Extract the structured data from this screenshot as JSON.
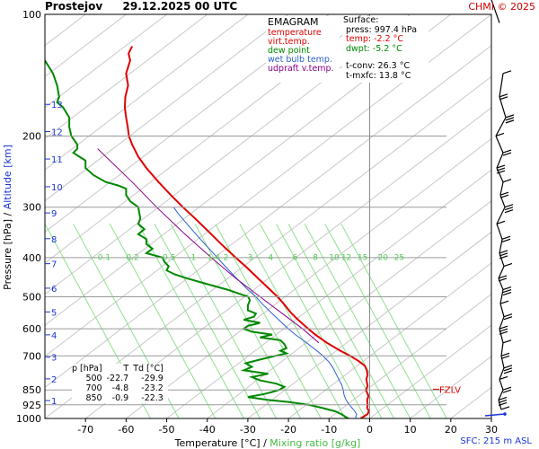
{
  "header": {
    "station": "Prostejov",
    "datetime": "29.12.2025 00 UTC",
    "credit": "CHMI © 2025"
  },
  "legend": {
    "title": "EMAGRAM",
    "items": [
      {
        "label": "temperature",
        "color": "#e00000"
      },
      {
        "label": "virt.temp.",
        "color": "#e00000"
      },
      {
        "label": "dew point",
        "color": "#008800"
      },
      {
        "label": "wet bulb temp.",
        "color": "#2a5fd0"
      },
      {
        "label": "udpraft v.temp.",
        "color": "#8a008a"
      }
    ]
  },
  "surface": {
    "title": "Surface:",
    "press": "press: 997.4 hPa",
    "temp": "temp: -2.2 °C",
    "dwpt": "dwpt: -5.2 °C",
    "tconv": "t-conv: 26.3 °C",
    "tmxfc": "t-mxfc: 13.8 °C"
  },
  "table": {
    "headers": [
      "p [hPa]",
      "T",
      "Td [°C]"
    ],
    "rows": [
      [
        "500",
        "-22.7",
        "-29.9"
      ],
      [
        "700",
        "-4.8",
        "-23.2"
      ],
      [
        "850",
        "-0.9",
        "-22.3"
      ]
    ]
  },
  "fzlv_label": "FZLV",
  "sfc_label": "SFC: 215 m ASL",
  "chart_data": {
    "type": "line",
    "xlabel": "Temperature [°C]",
    "xlabel_sep": " / ",
    "xlabel2": "Mixing ratio [g/kg]",
    "ylabel": "Pressure [hPa]",
    "ylabel_sep": " / ",
    "ylabel2": "Altitude [km]",
    "xlim": [
      -80,
      30
    ],
    "ylim": [
      1000,
      100
    ],
    "y_scale": "log",
    "grid": true,
    "x_ticks": [
      -70,
      -60,
      -50,
      -40,
      -30,
      -20,
      -10,
      0,
      10,
      20,
      30
    ],
    "p_ticks": [
      100,
      200,
      300,
      400,
      500,
      600,
      700,
      850,
      925,
      1000
    ],
    "km_ticks": [
      {
        "km": 1,
        "p": 903
      },
      {
        "km": 2,
        "p": 798
      },
      {
        "km": 3,
        "p": 705
      },
      {
        "km": 4,
        "p": 621
      },
      {
        "km": 5,
        "p": 545
      },
      {
        "km": 6,
        "p": 476
      },
      {
        "km": 7,
        "p": 414
      },
      {
        "km": 8,
        "p": 359
      },
      {
        "km": 9,
        "p": 310
      },
      {
        "km": 10,
        "p": 267
      },
      {
        "km": 11,
        "p": 228
      },
      {
        "km": 12,
        "p": 195
      },
      {
        "km": 13,
        "p": 167
      }
    ],
    "mixing_ratio_labels": [
      "0.1",
      "0.2",
      "0.5",
      "1",
      "1.4",
      "2",
      "3",
      "4",
      "6",
      "8",
      "10",
      "12",
      "15",
      "20",
      "25"
    ],
    "mixing_ratio_label_p": 405,
    "series": [
      {
        "name": "temperature",
        "color": "#e00000",
        "points": [
          [
            1000,
            -2.2
          ],
          [
            990,
            -1.5
          ],
          [
            975,
            -0.5
          ],
          [
            960,
            -0.2
          ],
          [
            940,
            -0.6
          ],
          [
            925,
            -0.5
          ],
          [
            900,
            -0.6
          ],
          [
            880,
            -0.3
          ],
          [
            860,
            -0.7
          ],
          [
            850,
            -0.9
          ],
          [
            830,
            -0.5
          ],
          [
            800,
            -0.8
          ],
          [
            780,
            -0.5
          ],
          [
            760,
            -0.7
          ],
          [
            740,
            -1.2
          ],
          [
            720,
            -2.8
          ],
          [
            700,
            -4.8
          ],
          [
            680,
            -7.2
          ],
          [
            650,
            -10.5
          ],
          [
            620,
            -13.4
          ],
          [
            600,
            -15.1
          ],
          [
            570,
            -17.6
          ],
          [
            550,
            -19.2
          ],
          [
            520,
            -21.2
          ],
          [
            500,
            -22.7
          ],
          [
            470,
            -25.5
          ],
          [
            450,
            -27.5
          ],
          [
            420,
            -30.6
          ],
          [
            400,
            -33.0
          ],
          [
            370,
            -36.6
          ],
          [
            350,
            -39.0
          ],
          [
            320,
            -43.0
          ],
          [
            300,
            -46.0
          ],
          [
            280,
            -49.0
          ],
          [
            260,
            -52.0
          ],
          [
            240,
            -55.0
          ],
          [
            225,
            -57.0
          ],
          [
            210,
            -58.5
          ],
          [
            200,
            -59.3
          ],
          [
            190,
            -59.6
          ],
          [
            180,
            -60.0
          ],
          [
            170,
            -60.3
          ],
          [
            160,
            -60.2
          ],
          [
            150,
            -59.5
          ],
          [
            140,
            -60.0
          ],
          [
            130,
            -59.0
          ],
          [
            125,
            -59.4
          ],
          [
            120,
            -58.5
          ]
        ]
      },
      {
        "name": "dew point",
        "color": "#008800",
        "points": [
          [
            1000,
            -5.2
          ],
          [
            990,
            -6.0
          ],
          [
            975,
            -7.0
          ],
          [
            960,
            -8.5
          ],
          [
            940,
            -12.0
          ],
          [
            925,
            -15.0
          ],
          [
            910,
            -20.0
          ],
          [
            900,
            -25.0
          ],
          [
            885,
            -30.0
          ],
          [
            870,
            -26.0
          ],
          [
            860,
            -24.0
          ],
          [
            850,
            -22.3
          ],
          [
            835,
            -21.0
          ],
          [
            820,
            -23.0
          ],
          [
            805,
            -27.0
          ],
          [
            790,
            -29.0
          ],
          [
            775,
            -25.0
          ],
          [
            760,
            -31.0
          ],
          [
            745,
            -29.0
          ],
          [
            730,
            -30.5
          ],
          [
            715,
            -27.0
          ],
          [
            700,
            -23.2
          ],
          [
            690,
            -20.5
          ],
          [
            680,
            -22.0
          ],
          [
            670,
            -20.5
          ],
          [
            655,
            -21.0
          ],
          [
            640,
            -22.0
          ],
          [
            630,
            -27.0
          ],
          [
            620,
            -24.0
          ],
          [
            610,
            -29.0
          ],
          [
            600,
            -31.0
          ],
          [
            590,
            -30.0
          ],
          [
            580,
            -27.0
          ],
          [
            570,
            -31.0
          ],
          [
            560,
            -28.5
          ],
          [
            550,
            -28.0
          ],
          [
            540,
            -30.0
          ],
          [
            525,
            -30.0
          ],
          [
            510,
            -29.5
          ],
          [
            500,
            -29.9
          ],
          [
            480,
            -35.0
          ],
          [
            465,
            -40.0
          ],
          [
            450,
            -45.0
          ],
          [
            440,
            -48.0
          ],
          [
            430,
            -50.0
          ],
          [
            420,
            -49.5
          ],
          [
            410,
            -50.5
          ],
          [
            400,
            -51.0
          ],
          [
            390,
            -55.0
          ],
          [
            380,
            -53.5
          ],
          [
            370,
            -55.0
          ],
          [
            360,
            -55.0
          ],
          [
            350,
            -57.0
          ],
          [
            340,
            -55.5
          ],
          [
            330,
            -57.0
          ],
          [
            320,
            -56.5
          ],
          [
            300,
            -57.0
          ],
          [
            290,
            -59.0
          ],
          [
            280,
            -60.0
          ],
          [
            270,
            -60.0
          ],
          [
            265,
            -62.0
          ],
          [
            260,
            -65.0
          ],
          [
            250,
            -68.0
          ],
          [
            240,
            -70.0
          ],
          [
            230,
            -70.0
          ],
          [
            225,
            -71.5
          ],
          [
            220,
            -73.0
          ],
          [
            215,
            -72.0
          ],
          [
            210,
            -72.0
          ],
          [
            200,
            -73.5
          ],
          [
            190,
            -74.0
          ],
          [
            180,
            -74.0
          ],
          [
            170,
            -75.5
          ],
          [
            165,
            -77.0
          ],
          [
            160,
            -76.5
          ],
          [
            150,
            -77.0
          ],
          [
            140,
            -78.0
          ],
          [
            130,
            -80.0
          ]
        ]
      },
      {
        "name": "wet bulb temp.",
        "color": "#2a5fd0",
        "points": [
          [
            1000,
            -3.5
          ],
          [
            975,
            -3.2
          ],
          [
            950,
            -4.0
          ],
          [
            925,
            -5.0
          ],
          [
            900,
            -5.8
          ],
          [
            875,
            -6.3
          ],
          [
            850,
            -6.5
          ],
          [
            825,
            -6.9
          ],
          [
            800,
            -7.6
          ],
          [
            775,
            -8.3
          ],
          [
            750,
            -9.0
          ],
          [
            725,
            -10.0
          ],
          [
            700,
            -11.5
          ],
          [
            680,
            -13.0
          ],
          [
            650,
            -15.5
          ],
          [
            620,
            -18.3
          ],
          [
            600,
            -20.0
          ],
          [
            580,
            -21.6
          ],
          [
            550,
            -24.0
          ],
          [
            520,
            -26.5
          ],
          [
            500,
            -28.0
          ],
          [
            480,
            -30.0
          ],
          [
            450,
            -32.8
          ],
          [
            420,
            -35.6
          ],
          [
            400,
            -37.5
          ],
          [
            370,
            -40.6
          ],
          [
            350,
            -42.8
          ],
          [
            330,
            -45.0
          ],
          [
            310,
            -47.3
          ],
          [
            300,
            -48.3
          ]
        ]
      },
      {
        "name": "udpraft v.temp.",
        "color": "#8a008a",
        "points": [
          [
            650,
            -12.5
          ],
          [
            600,
            -16.5
          ],
          [
            550,
            -21.5
          ],
          [
            500,
            -27.0
          ],
          [
            450,
            -33.0
          ],
          [
            400,
            -39.0
          ],
          [
            350,
            -45.5
          ],
          [
            300,
            -52.5
          ],
          [
            260,
            -58.5
          ],
          [
            230,
            -64.0
          ],
          [
            215,
            -67.0
          ]
        ]
      }
    ],
    "fzlv_p": 855,
    "wind_profile_note": "wind barbs on right panel"
  }
}
